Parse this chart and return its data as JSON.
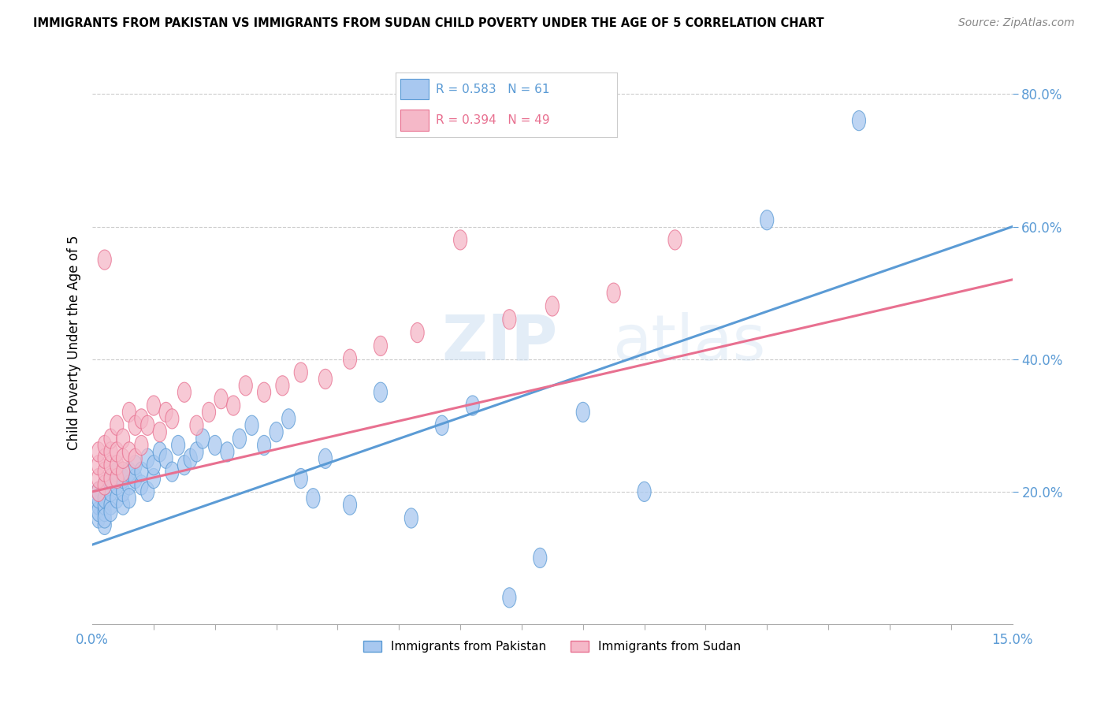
{
  "title": "IMMIGRANTS FROM PAKISTAN VS IMMIGRANTS FROM SUDAN CHILD POVERTY UNDER THE AGE OF 5 CORRELATION CHART",
  "source": "Source: ZipAtlas.com",
  "ylabel": "Child Poverty Under the Age of 5",
  "xlim": [
    0.0,
    0.15
  ],
  "ylim": [
    0.0,
    0.85
  ],
  "xtick_labels": [
    "0.0%",
    "15.0%"
  ],
  "yticks": [
    0.2,
    0.4,
    0.6,
    0.8
  ],
  "ytick_labels": [
    "20.0%",
    "40.0%",
    "60.0%",
    "80.0%"
  ],
  "watermark_zip": "ZIP",
  "watermark_atlas": "atlas",
  "legend_r1": "0.583",
  "legend_n1": "61",
  "legend_r2": "0.394",
  "legend_n2": "49",
  "color_pakistan": "#A8C8F0",
  "color_sudan": "#F5B8C8",
  "line_color_pakistan": "#5B9BD5",
  "line_color_sudan": "#E87090",
  "background_color": "#FFFFFF",
  "pak_line_x0": 0.0,
  "pak_line_y0": 0.12,
  "pak_line_x1": 0.15,
  "pak_line_y1": 0.6,
  "sud_line_x0": 0.0,
  "sud_line_y0": 0.2,
  "sud_line_x1": 0.15,
  "sud_line_y1": 0.52,
  "pakistan_x": [
    0.001,
    0.001,
    0.001,
    0.001,
    0.001,
    0.002,
    0.002,
    0.002,
    0.002,
    0.002,
    0.002,
    0.003,
    0.003,
    0.003,
    0.003,
    0.004,
    0.004,
    0.004,
    0.005,
    0.005,
    0.005,
    0.006,
    0.006,
    0.006,
    0.007,
    0.007,
    0.008,
    0.008,
    0.009,
    0.009,
    0.01,
    0.01,
    0.011,
    0.012,
    0.013,
    0.014,
    0.015,
    0.016,
    0.017,
    0.018,
    0.02,
    0.022,
    0.024,
    0.026,
    0.028,
    0.03,
    0.032,
    0.034,
    0.036,
    0.038,
    0.042,
    0.047,
    0.052,
    0.057,
    0.062,
    0.068,
    0.073,
    0.08,
    0.09,
    0.11,
    0.125
  ],
  "pakistan_y": [
    0.16,
    0.18,
    0.17,
    0.2,
    0.19,
    0.15,
    0.17,
    0.18,
    0.16,
    0.19,
    0.21,
    0.18,
    0.2,
    0.17,
    0.22,
    0.19,
    0.21,
    0.23,
    0.18,
    0.2,
    0.22,
    0.21,
    0.23,
    0.19,
    0.22,
    0.24,
    0.21,
    0.23,
    0.2,
    0.25,
    0.22,
    0.24,
    0.26,
    0.25,
    0.23,
    0.27,
    0.24,
    0.25,
    0.26,
    0.28,
    0.27,
    0.26,
    0.28,
    0.3,
    0.27,
    0.29,
    0.31,
    0.22,
    0.19,
    0.25,
    0.18,
    0.35,
    0.16,
    0.3,
    0.33,
    0.04,
    0.1,
    0.32,
    0.2,
    0.61,
    0.76
  ],
  "sudan_x": [
    0.001,
    0.001,
    0.001,
    0.001,
    0.002,
    0.002,
    0.002,
    0.002,
    0.002,
    0.003,
    0.003,
    0.003,
    0.003,
    0.004,
    0.004,
    0.004,
    0.004,
    0.005,
    0.005,
    0.005,
    0.006,
    0.006,
    0.007,
    0.007,
    0.008,
    0.008,
    0.009,
    0.01,
    0.011,
    0.012,
    0.013,
    0.015,
    0.017,
    0.019,
    0.021,
    0.023,
    0.025,
    0.028,
    0.031,
    0.034,
    0.038,
    0.042,
    0.047,
    0.053,
    0.06,
    0.068,
    0.075,
    0.085,
    0.095
  ],
  "sudan_y": [
    0.2,
    0.22,
    0.24,
    0.26,
    0.21,
    0.23,
    0.25,
    0.27,
    0.55,
    0.22,
    0.24,
    0.26,
    0.28,
    0.22,
    0.24,
    0.26,
    0.3,
    0.23,
    0.25,
    0.28,
    0.26,
    0.32,
    0.25,
    0.3,
    0.27,
    0.31,
    0.3,
    0.33,
    0.29,
    0.32,
    0.31,
    0.35,
    0.3,
    0.32,
    0.34,
    0.33,
    0.36,
    0.35,
    0.36,
    0.38,
    0.37,
    0.4,
    0.42,
    0.44,
    0.58,
    0.46,
    0.48,
    0.5,
    0.58
  ]
}
